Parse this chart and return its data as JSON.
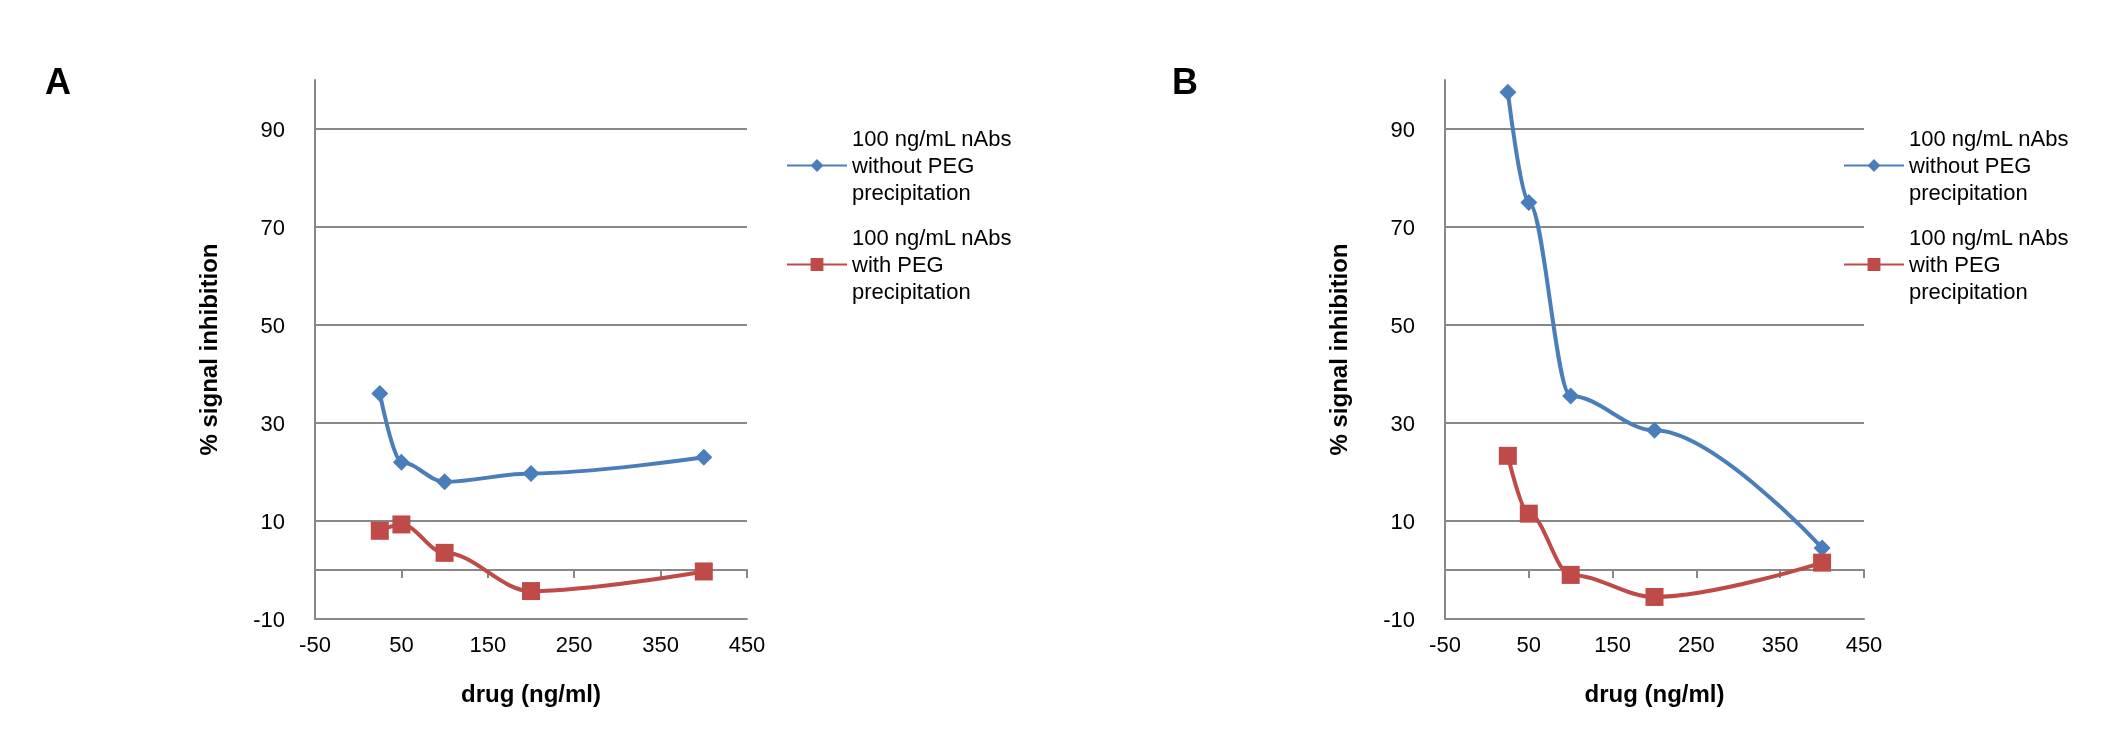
{
  "chart_data": [
    {
      "type": "line",
      "title": "A",
      "xlabel": "drug (ng/ml)",
      "ylabel": "% signal inhibition",
      "xlim": [
        -50,
        450
      ],
      "xticks": [
        -50,
        50,
        150,
        250,
        350,
        450
      ],
      "ylim": [
        -10,
        100
      ],
      "yticks": [
        -10,
        10,
        30,
        50,
        70,
        90
      ],
      "grid": "y",
      "legend": "right",
      "series": [
        {
          "name": "100 ng/mL nAbs without PEG precipitation",
          "color": "#4a7ebb",
          "marker": "diamond",
          "x": [
            25,
            50,
            100,
            200,
            400
          ],
          "values": [
            36,
            22,
            18,
            19.7,
            23
          ]
        },
        {
          "name": "100 ng/mL nAbs with PEG precipitation",
          "color": "#be4b48",
          "marker": "square",
          "x": [
            25,
            50,
            100,
            200,
            400
          ],
          "values": [
            8,
            9.3,
            3.5,
            -4.3,
            -0.3
          ]
        }
      ]
    },
    {
      "type": "line",
      "title": "B",
      "xlabel": "drug (ng/ml)",
      "ylabel": "% signal inhibition",
      "xlim": [
        -50,
        450
      ],
      "xticks": [
        -50,
        50,
        150,
        250,
        350,
        450
      ],
      "ylim": [
        -10,
        100
      ],
      "yticks": [
        -10,
        10,
        30,
        50,
        70,
        90
      ],
      "grid": "y",
      "legend": "right",
      "series": [
        {
          "name": "100 ng/mL nAbs without PEG precipitation",
          "color": "#4a7ebb",
          "marker": "diamond",
          "x": [
            25,
            50,
            100,
            200,
            400
          ],
          "values": [
            97.5,
            75,
            35.5,
            28.5,
            4.5
          ]
        },
        {
          "name": "100 ng/mL nAbs with PEG precipitation",
          "color": "#be4b48",
          "marker": "square",
          "x": [
            25,
            50,
            100,
            200,
            400
          ],
          "values": [
            23.3,
            11.5,
            -1,
            -5.5,
            1.5
          ]
        }
      ]
    }
  ]
}
